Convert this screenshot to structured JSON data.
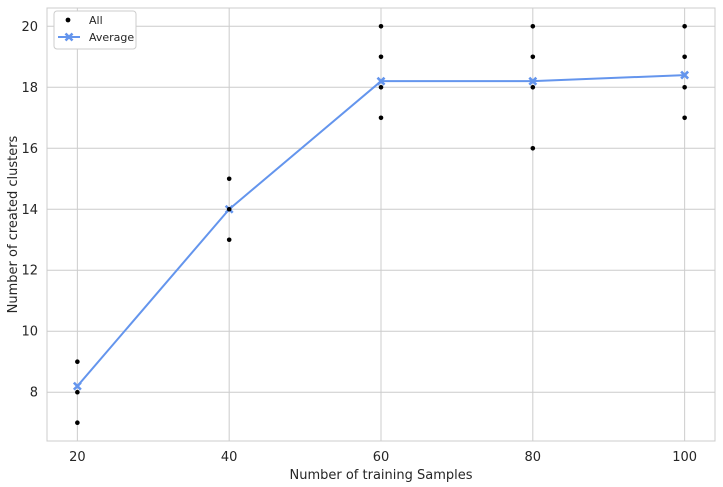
{
  "chart_data": {
    "type": "scatter",
    "title": "",
    "xlabel": "Number of training Samples",
    "ylabel": "Number of created clusters",
    "xlim": [
      16,
      104
    ],
    "ylim": [
      6.4,
      20.6
    ],
    "xticks": [
      20,
      40,
      60,
      80,
      100
    ],
    "yticks": [
      8,
      10,
      12,
      14,
      16,
      18,
      20
    ],
    "grid": true,
    "legend_position": "top-left",
    "series": [
      {
        "name": "All",
        "kind": "scatter",
        "color": "#000000",
        "points": [
          [
            20,
            7
          ],
          [
            20,
            8
          ],
          [
            20,
            9
          ],
          [
            40,
            13
          ],
          [
            40,
            14
          ],
          [
            40,
            15
          ],
          [
            60,
            17
          ],
          [
            60,
            18
          ],
          [
            60,
            19
          ],
          [
            60,
            20
          ],
          [
            80,
            16
          ],
          [
            80,
            18
          ],
          [
            80,
            19
          ],
          [
            80,
            20
          ],
          [
            100,
            17
          ],
          [
            100,
            18
          ],
          [
            100,
            19
          ],
          [
            100,
            20
          ]
        ]
      },
      {
        "name": "Average",
        "kind": "line",
        "marker": "X",
        "color": "#6495ED",
        "x": [
          20,
          40,
          60,
          80,
          100
        ],
        "y": [
          8.2,
          14.0,
          18.2,
          18.2,
          18.4
        ]
      }
    ]
  }
}
